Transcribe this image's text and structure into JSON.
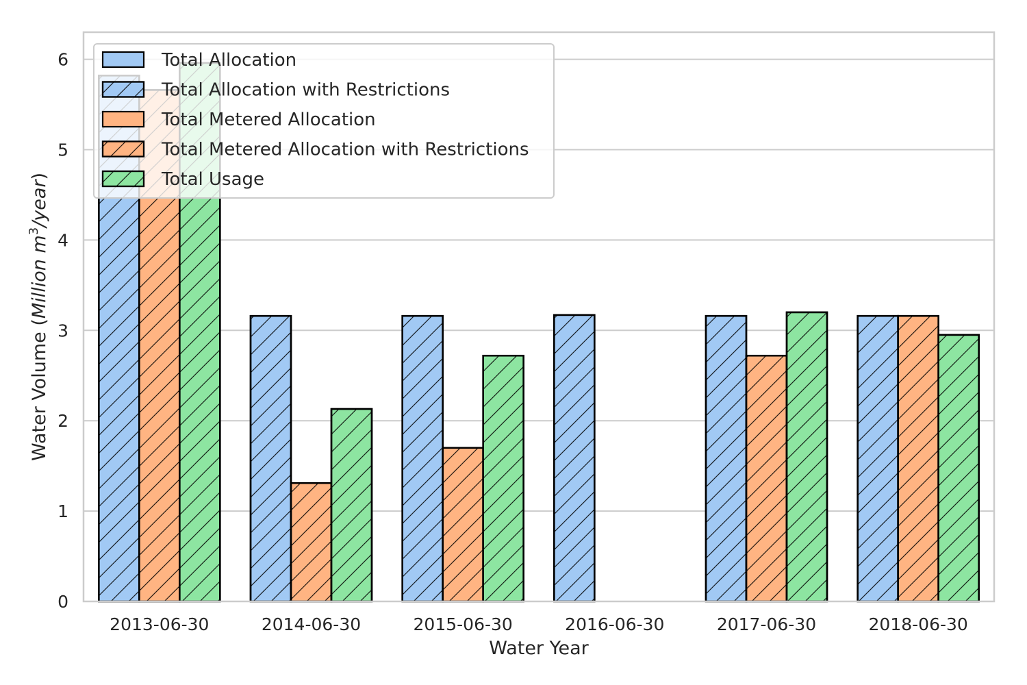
{
  "chart_data": {
    "type": "bar",
    "title": "",
    "xlabel": "Water Year",
    "ylabel_parts": {
      "prefix": "Water Volume (",
      "italic_main": "Million m",
      "superscript": "3",
      "italic_tail": "/year",
      "suffix": ")"
    },
    "categories": [
      "2013-06-30",
      "2014-06-30",
      "2015-06-30",
      "2016-06-30",
      "2017-06-30",
      "2018-06-30"
    ],
    "ylim": [
      0,
      6.3
    ],
    "yticks": [
      0,
      1,
      2,
      3,
      4,
      5,
      6
    ],
    "grid": "horizontal",
    "legend_position": "upper-left",
    "series": [
      {
        "name": "Total Allocation",
        "color": "#a1c9f4",
        "hatch": false,
        "values": [
          5.82,
          null,
          null,
          null,
          null,
          null
        ]
      },
      {
        "name": "Total Allocation with Restrictions",
        "color": "#a1c9f4",
        "hatch": true,
        "values": [
          5.82,
          3.16,
          3.16,
          3.17,
          3.16,
          3.16
        ]
      },
      {
        "name": "Total Metered Allocation",
        "color": "#ffb482",
        "hatch": false,
        "values": [
          5.66,
          null,
          null,
          null,
          null,
          null
        ]
      },
      {
        "name": "Total Metered Allocation with Restrictions",
        "color": "#ffb482",
        "hatch": true,
        "values": [
          5.66,
          1.31,
          1.7,
          null,
          2.72,
          3.16
        ]
      },
      {
        "name": "Total Usage",
        "color": "#8de5a1",
        "hatch": true,
        "values": [
          5.96,
          2.13,
          2.72,
          null,
          3.2,
          2.95
        ]
      }
    ]
  }
}
